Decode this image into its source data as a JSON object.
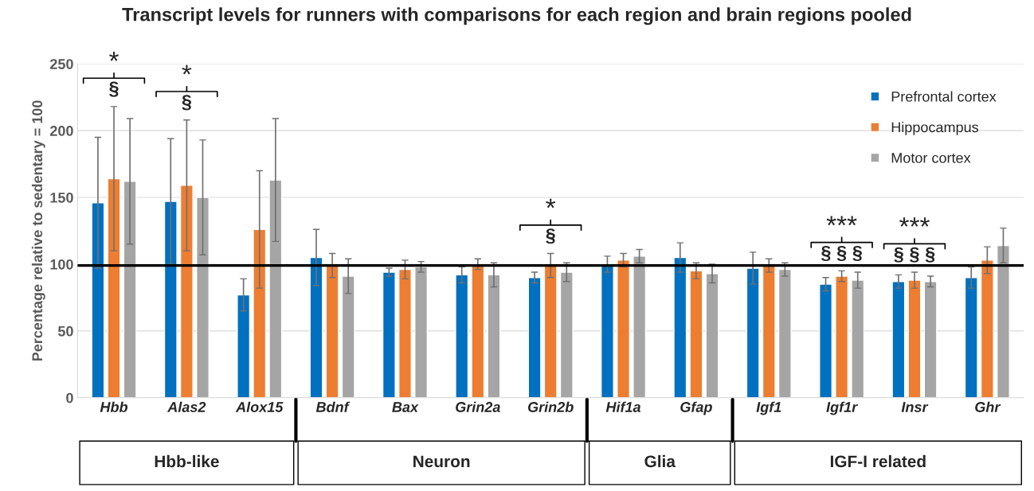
{
  "chart_data": {
    "type": "bar",
    "title": "Transcript levels for runners with comparisons for each region and brain regions pooled",
    "ylabel": "Percentage relative to sedentary = 100",
    "categories": [
      "Hbb",
      "Alas2",
      "Alox15",
      "Bdnf",
      "Bax",
      "Grin2a",
      "Grin2b",
      "Hif1a",
      "Gfap",
      "Igf1",
      "Igf1r",
      "Insr",
      "Ghr"
    ],
    "series": [
      {
        "name": "Prefrontal cortex",
        "color": "#0070c0",
        "values": [
          146,
          147,
          77,
          105,
          94,
          92,
          90,
          100,
          105,
          97,
          85,
          87,
          90
        ],
        "errors": [
          49,
          47,
          12,
          21,
          3,
          6,
          4,
          6,
          11,
          12,
          5,
          5,
          8
        ]
      },
      {
        "name": "Hippocampus",
        "color": "#ed7d31",
        "values": [
          164,
          159,
          126,
          99,
          96,
          100,
          99,
          103,
          95,
          99,
          91,
          88,
          103
        ],
        "errors": [
          54,
          49,
          44,
          9,
          7,
          4,
          9,
          5,
          6,
          5,
          4,
          6,
          10
        ]
      },
      {
        "name": "Motor cortex",
        "color": "#a5a5a5",
        "values": [
          162,
          150,
          163,
          91,
          98,
          92,
          94,
          106,
          93,
          96,
          88,
          87,
          114
        ],
        "errors": [
          47,
          43,
          46,
          13,
          4,
          9,
          7,
          5,
          7,
          5,
          6,
          4,
          13
        ]
      }
    ],
    "ylim": [
      0,
      250
    ],
    "yticks": [
      0,
      50,
      100,
      150,
      200,
      250
    ],
    "grid": "y",
    "legend": "top right",
    "ref_lines": [
      {
        "axis": "y",
        "value": 99,
        "color": "#000000"
      }
    ],
    "annotations": [
      "*",
      "§",
      "*",
      "§",
      "*",
      "§",
      "***",
      "§ § §",
      "***",
      "§ § §",
      "Hbb-like",
      "Neuron",
      "Glia",
      "IGF-I related"
    ]
  }
}
